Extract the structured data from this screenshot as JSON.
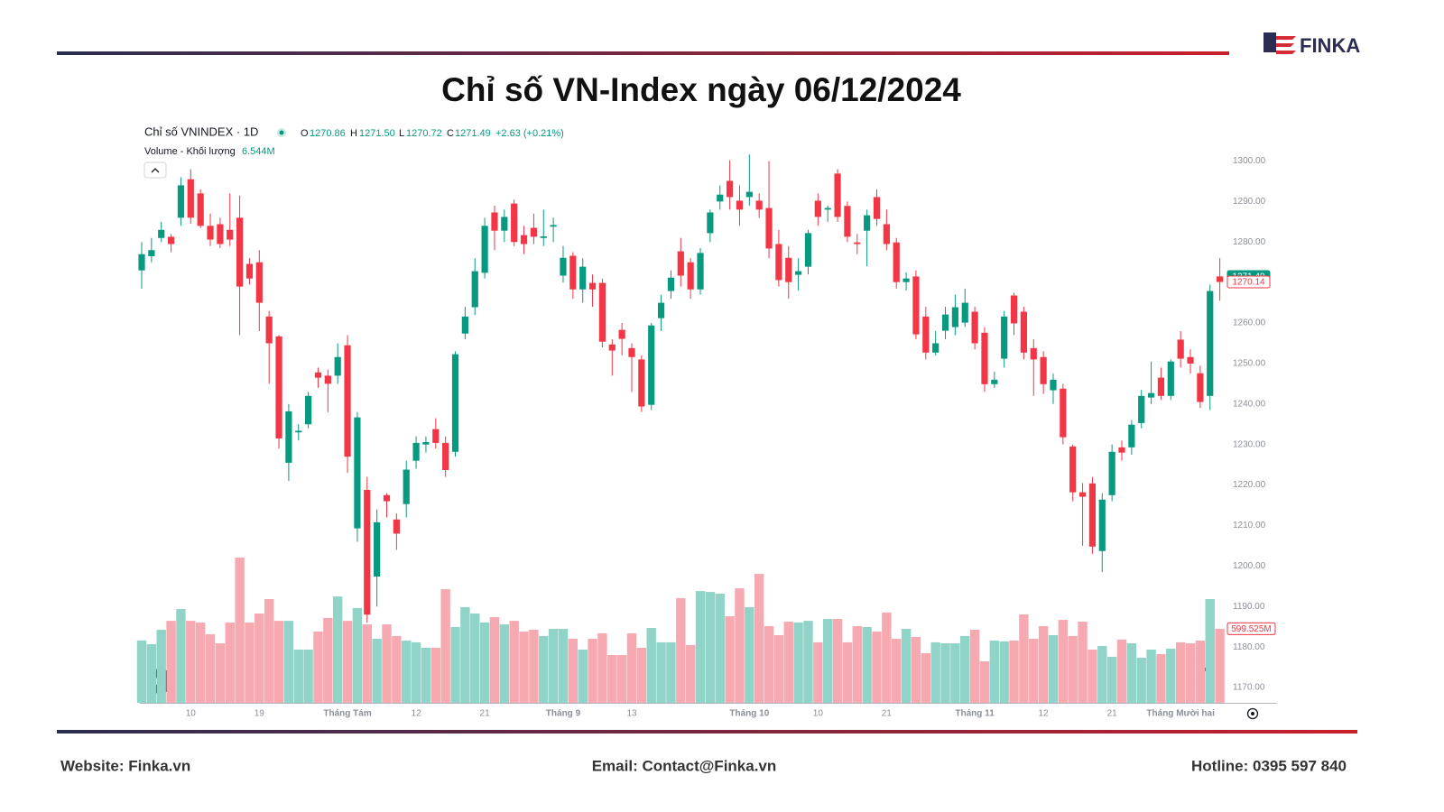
{
  "header": {
    "title": "Chỉ số VN-Index ngày 06/12/2024",
    "logo": "FINKA"
  },
  "footer": {
    "website": "Website: Finka.vn",
    "email": "Email: Contact@Finka.vn",
    "hotline": "Hotline: 0395 597 840"
  },
  "chart_data": {
    "type": "candlestick",
    "legend": {
      "symbol": "Chỉ số VNINDEX · 1D",
      "ohlc": [
        {
          "key": "O",
          "value": "1270.86"
        },
        {
          "key": "H",
          "value": "1271.50"
        },
        {
          "key": "L",
          "value": "1270.72"
        },
        {
          "key": "C",
          "value": "1271.49"
        }
      ],
      "change": "+2.63 (+0.21%)",
      "volume_name": "Volume - Khối lượng",
      "volume_value": "6.544M"
    },
    "up_color": "#089981",
    "down_color": "#f23645",
    "volume_up_color": "#8fd4c7",
    "volume_down_color": "#f7a9b1",
    "categories": [
      null,
      null,
      null,
      null,
      null,
      "10",
      null,
      null,
      null,
      null,
      null,
      null,
      "19",
      null,
      null,
      null,
      null,
      null,
      null,
      null,
      null,
      "Tháng Tám",
      null,
      null,
      null,
      null,
      null,
      null,
      "12",
      null,
      null,
      null,
      null,
      null,
      null,
      "21",
      null,
      null,
      null,
      null,
      null,
      null,
      null,
      "Tháng 9",
      null,
      null,
      null,
      null,
      null,
      null,
      "13",
      null,
      null,
      null,
      null,
      null,
      null,
      null,
      null,
      null,
      null,
      null,
      "Tháng 10",
      null,
      null,
      null,
      null,
      null,
      null,
      "10",
      null,
      null,
      null,
      null,
      null,
      null,
      "21",
      null,
      null,
      null,
      null,
      null,
      null,
      null,
      null,
      "Tháng 11",
      null,
      null,
      null,
      null,
      null,
      null,
      "12",
      null,
      null,
      null,
      null,
      null,
      null,
      "21",
      null,
      null,
      null,
      null,
      null,
      null,
      "Tháng Mười hai",
      null,
      null,
      null,
      null
    ],
    "open": [
      1273,
      1276.5,
      1281,
      1281.3,
      1286,
      1295.5,
      1292,
      1284,
      1284.4,
      1283,
      1286,
      1274.6,
      1275,
      1261.6,
      1256.7,
      1225.5,
      1233,
      1235,
      1247.8,
      1247,
      1247,
      1254.5,
      1209.3,
      1218.8,
      1197.4,
      1217.5,
      1211.5,
      1215.3,
      1226,
      1230,
      1233.8,
      1230.4,
      1228.2,
      1257.4,
      1263.9,
      1272.4,
      1287.3,
      1282.8,
      1289.5,
      1281.7,
      1283.5,
      1281,
      1283.8,
      1271.7,
      1276.6,
      1268.3,
      1269.9,
      1269.9,
      1254.7,
      1258.3,
      1253.8,
      1251,
      1239.8,
      1261.2,
      1267.9,
      1277.7,
      1275,
      1268.3,
      1282.2,
      1290,
      1295.1,
      1290.2,
      1291.1,
      1290.2,
      1288.4,
      1279.5,
      1276.1,
      1271.9,
      1273.9,
      1290.2,
      1288,
      1296.9,
      1288.9,
      1279.9,
      1282.8,
      1291.1,
      1284.4,
      1279.9,
      1270.1,
      1271.5,
      1261.6,
      1252.7,
      1258.1,
      1259,
      1260.1,
      1262.8,
      1257.6,
      1244.9,
      1251.2,
      1266.8,
      1262.8,
      1253.8,
      1251.6,
      1243.4,
      1243.8,
      1229.5,
      1218.2,
      1220.4,
      1203.7,
      1217.5,
      1229.3,
      1229.3,
      1235.3,
      1241.6,
      1246.5,
      1242,
      1255.9,
      1251.6,
      1247.6,
      1242,
      1271.5
    ],
    "high": [
      1280,
      1281,
      1285,
      1282,
      1296,
      1298,
      1293,
      1287,
      1286,
      1292,
      1291.5,
      1276,
      1278,
      1263,
      1257,
      1240,
      1235,
      1243,
      1249,
      1248.5,
      1255,
      1257,
      1238,
      1222,
      1214,
      1218,
      1213,
      1226,
      1232,
      1232,
      1236.5,
      1232,
      1253,
      1264,
      1276,
      1286,
      1289,
      1288,
      1290.5,
      1284,
      1287,
      1288,
      1286,
      1279,
      1277.5,
      1276,
      1272,
      1271,
      1256,
      1260,
      1255,
      1252,
      1260,
      1267,
      1273,
      1281,
      1276,
      1278.5,
      1288,
      1294,
      1300.2,
      1294,
      1301.6,
      1292,
      1300,
      1283,
      1279,
      1276,
      1283,
      1292,
      1289,
      1298,
      1290,
      1282,
      1288,
      1293,
      1288,
      1281,
      1272.5,
      1273,
      1264,
      1258,
      1264,
      1267,
      1268.5,
      1264,
      1259,
      1248,
      1263,
      1267.5,
      1264,
      1256,
      1253,
      1247.5,
      1245,
      1230,
      1220.5,
      1222,
      1218,
      1230,
      1231,
      1236,
      1243.5,
      1250.5,
      1249,
      1251,
      1258,
      1253.5,
      1249.5,
      1269.5,
      1276
    ],
    "low": [
      1268.5,
      1275,
      1280,
      1277.5,
      1284,
      1284.5,
      1283.5,
      1279,
      1278.5,
      1279,
      1257,
      1269.5,
      1258,
      1245,
      1229,
      1221,
      1231,
      1234,
      1244,
      1238,
      1245,
      1223,
      1206,
      1186,
      1190,
      1212,
      1204,
      1212,
      1224,
      1228,
      1229,
      1222,
      1227,
      1256,
      1262,
      1271,
      1278,
      1280,
      1279,
      1277,
      1279.5,
      1279,
      1280,
      1270,
      1266,
      1265,
      1264,
      1254,
      1247,
      1252,
      1243,
      1238,
      1238.5,
      1258,
      1266,
      1269,
      1266,
      1267,
      1280,
      1288,
      1288,
      1284,
      1289,
      1286,
      1276,
      1269,
      1266,
      1268,
      1272,
      1284,
      1285,
      1285,
      1280,
      1277,
      1274,
      1284,
      1278,
      1268.5,
      1268,
      1256,
      1251,
      1252,
      1256,
      1257,
      1259,
      1253.5,
      1243,
      1244,
      1249,
      1257,
      1251,
      1242,
      1242.5,
      1240,
      1230,
      1216,
      1205,
      1203,
      1198.5,
      1216,
      1226,
      1227.5,
      1234,
      1240,
      1241,
      1241,
      1249,
      1247.5,
      1239,
      1238.5,
      1265.5
    ],
    "close": [
      1277,
      1278,
      1283,
      1279.5,
      1294,
      1286,
      1284,
      1280.6,
      1279.5,
      1280.6,
      1269,
      1271,
      1265,
      1255,
      1231.5,
      1238.2,
      1233.4,
      1242,
      1246.5,
      1245,
      1251.6,
      1227,
      1236.7,
      1188,
      1210.8,
      1216,
      1208,
      1223.8,
      1230.4,
      1230.6,
      1230.4,
      1223.7,
      1252.3,
      1261.6,
      1272.8,
      1284,
      1282.8,
      1286.2,
      1280,
      1279.5,
      1281.3,
      1281.4,
      1284.2,
      1276.1,
      1268.3,
      1273.9,
      1268.3,
      1255.4,
      1253.2,
      1256.1,
      1251.6,
      1239.4,
      1259.4,
      1265,
      1271.2,
      1271.7,
      1268.3,
      1277.3,
      1287.3,
      1291.7,
      1291.1,
      1288,
      1292.4,
      1288,
      1278.4,
      1270.6,
      1270.1,
      1272.8,
      1282.2,
      1286.2,
      1288.4,
      1286.2,
      1281.3,
      1279.5,
      1286.6,
      1285.7,
      1279.5,
      1270.1,
      1271,
      1257.2,
      1252.7,
      1255,
      1262.1,
      1263.9,
      1265,
      1255,
      1244.9,
      1246,
      1261.6,
      1259.9,
      1252.7,
      1251,
      1244.9,
      1246,
      1231.8,
      1218.2,
      1217.1,
      1204.8,
      1216.4,
      1228.2,
      1228,
      1234.9,
      1242,
      1242.7,
      1242,
      1250.5,
      1251.2,
      1250,
      1240.5,
      1267.9,
      1270.14
    ],
    "volume": [
      505,
      474,
      591,
      664,
      759,
      664,
      650,
      555,
      482,
      650,
      1176,
      650,
      723,
      840,
      664,
      664,
      431,
      431,
      577,
      687,
      861,
      664,
      767,
      635,
      519,
      635,
      541,
      504,
      490,
      446,
      446,
      920,
      614,
      775,
      723,
      650,
      694,
      635,
      664,
      577,
      592,
      541,
      599,
      599,
      519,
      431,
      519,
      563,
      387,
      387,
      563,
      446,
      606,
      490,
      490,
      847,
      468,
      905,
      898,
      884,
      701,
      927,
      775,
      1044,
      621,
      548,
      657,
      650,
      664,
      490,
      679,
      679,
      490,
      621,
      614,
      577,
      731,
      519,
      599,
      534,
      402,
      490,
      482,
      482,
      541,
      592,
      336,
      504,
      497,
      504,
      716,
      519,
      621,
      548,
      672,
      541,
      657,
      431,
      460,
      373,
      512,
      482,
      365,
      431,
      395,
      438,
      490,
      482,
      504,
      840,
      599.525
    ],
    "volume_tag": "599.525M",
    "price_tags": [
      {
        "value": 1271.49,
        "color": "#089981"
      },
      {
        "value": 1270.14,
        "color": "#f23645"
      }
    ],
    "ylim": [
      1166,
      1303
    ],
    "yticks": [
      {
        "value": 1170,
        "label": "1170.00"
      },
      {
        "value": 1180,
        "label": "1180.00"
      },
      {
        "value": 1190,
        "label": "1190.00"
      },
      {
        "value": 1200,
        "label": "1200.00"
      },
      {
        "value": 1210,
        "label": "1210.00"
      },
      {
        "value": 1220,
        "label": "1220.00"
      },
      {
        "value": 1230,
        "label": "1230.00"
      },
      {
        "value": 1240,
        "label": "1240.00"
      },
      {
        "value": 1250,
        "label": "1250.00"
      },
      {
        "value": 1260,
        "label": "1260.00"
      },
      {
        "value": 1270,
        "label": "1270.00"
      },
      {
        "value": 1280,
        "label": "1280.00"
      },
      {
        "value": 1290,
        "label": "1290.00"
      },
      {
        "value": 1300,
        "label": "1300.00"
      }
    ],
    "grid": false
  }
}
